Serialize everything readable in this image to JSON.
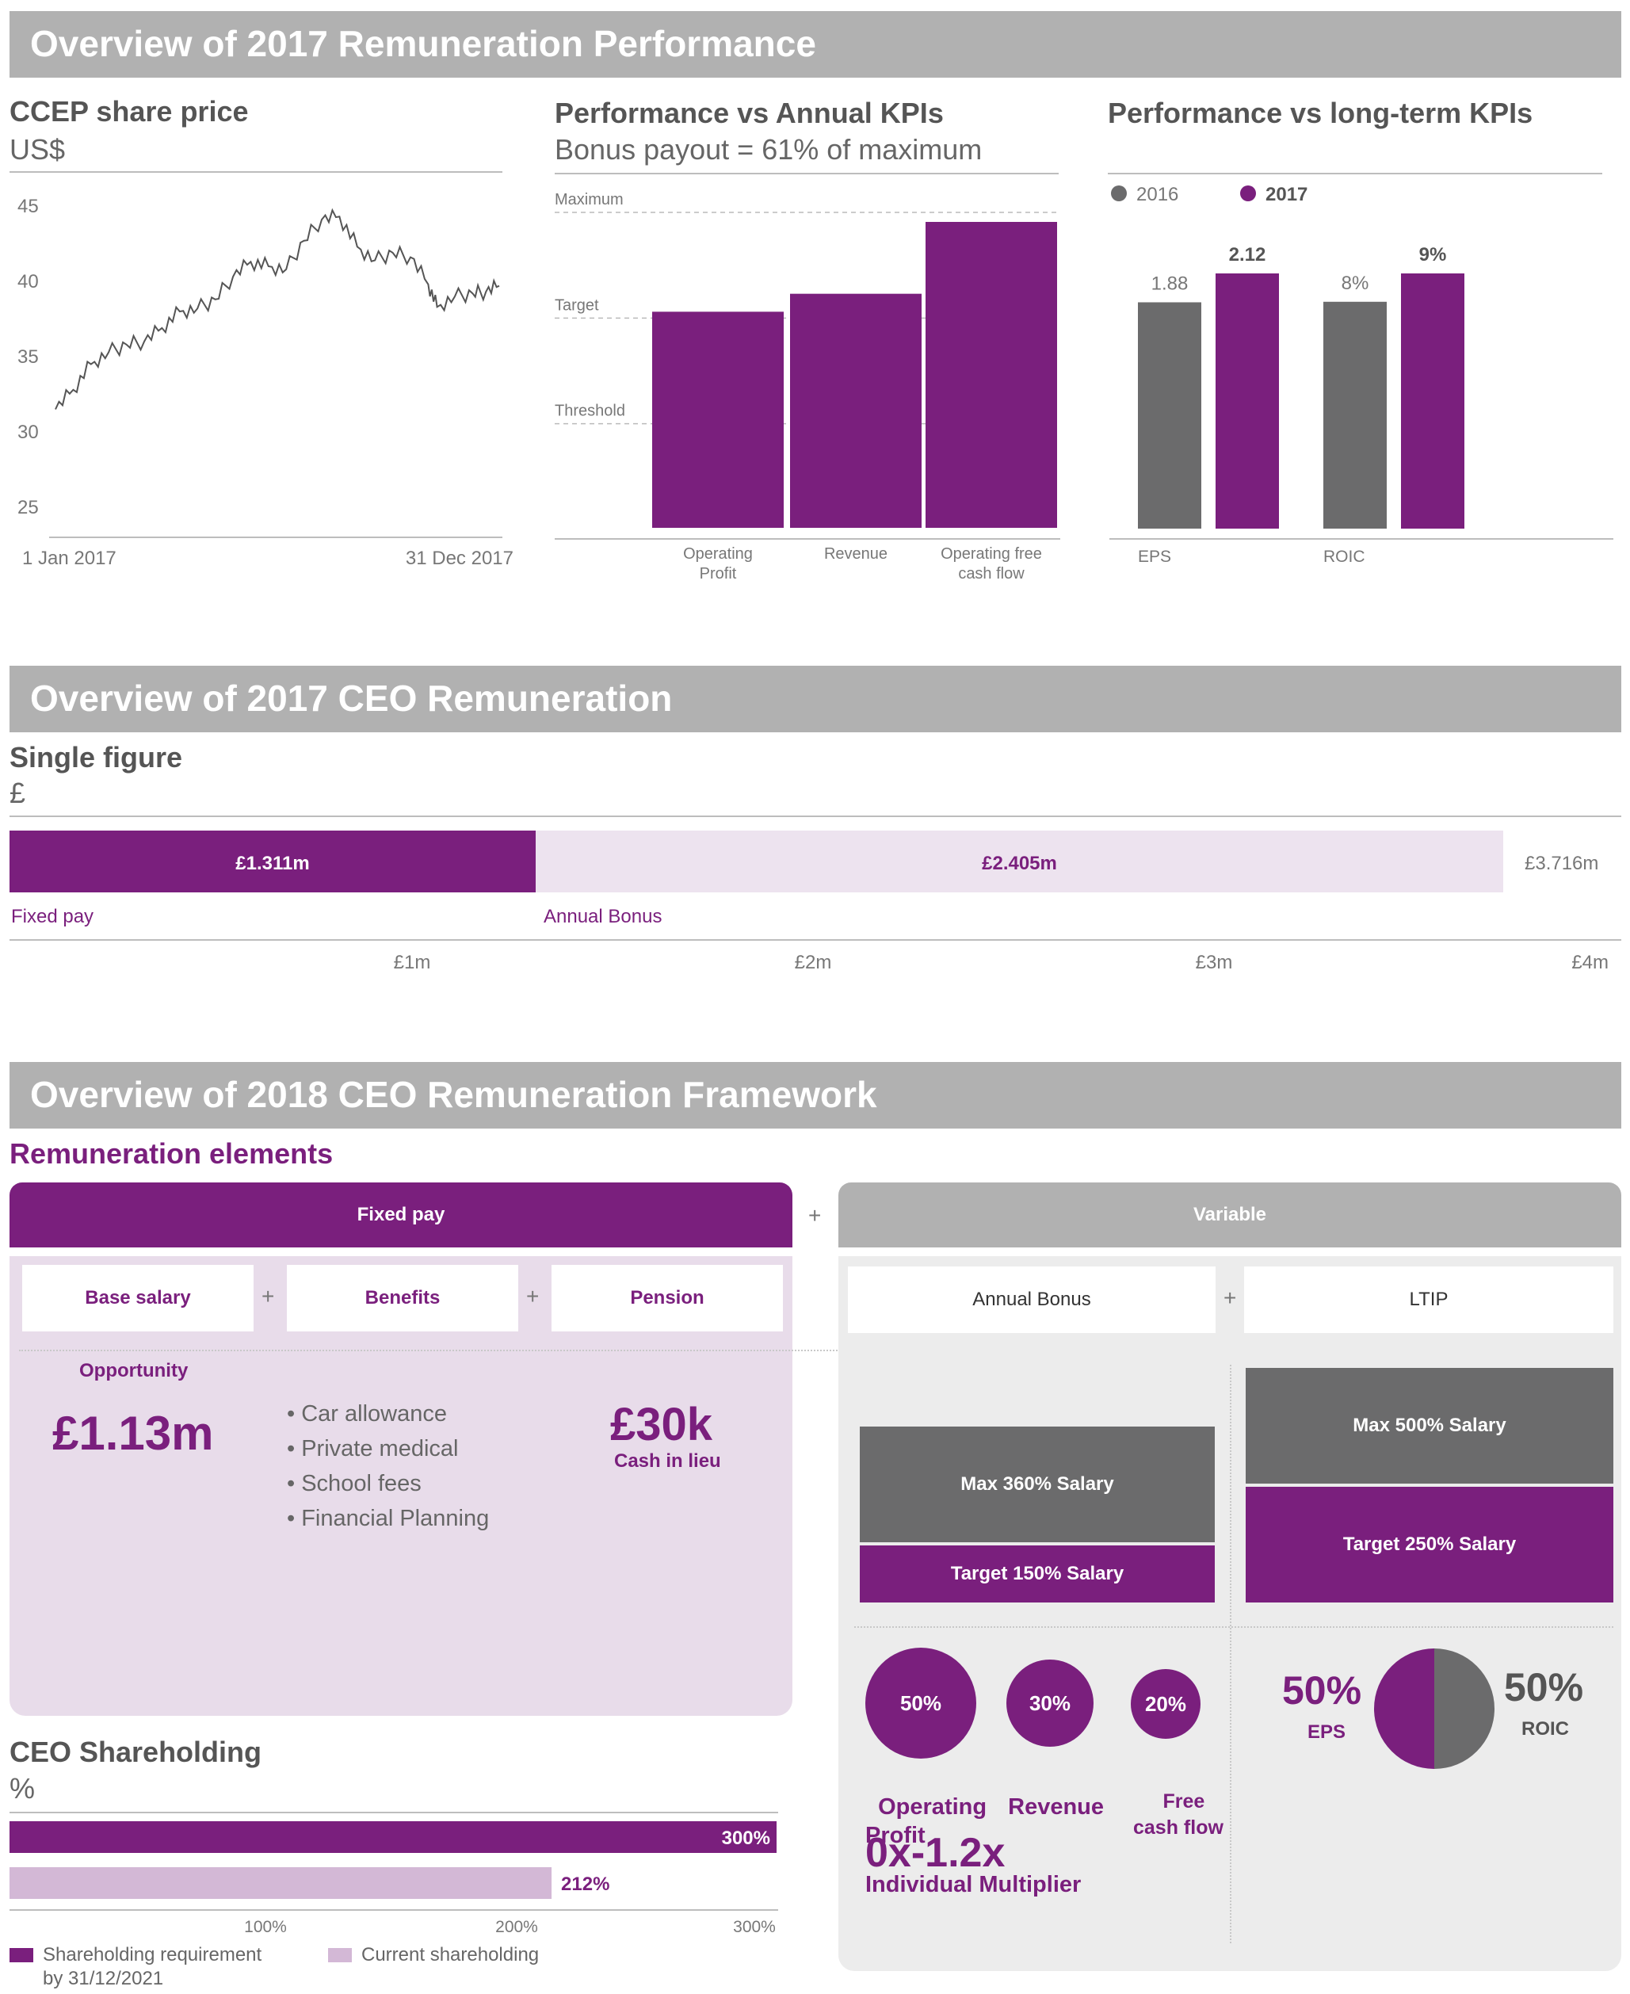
{
  "sections": {
    "perf_title": "Overview of 2017 Remuneration Performance",
    "ceo_title": "Overview of 2017 CEO Remuneration",
    "framework_title": "Overview of 2018 CEO Remuneration Framework"
  },
  "share_price": {
    "title": "CCEP share price",
    "unit": "US$",
    "start_label": "1 Jan 2017",
    "end_label": "31 Dec 2017"
  },
  "annual_kpis": {
    "title": "Performance vs Annual KPIs",
    "subtitle": "Bonus payout = 61% of maximum",
    "level_labels": [
      "Maximum",
      "Target",
      "Threshold"
    ],
    "cat_labels": [
      "Operating\nProfit",
      "Revenue",
      "Operating free\ncash flow"
    ]
  },
  "longterm_kpis": {
    "title": "Performance vs long-term KPIs",
    "legend": [
      "2016",
      "2017"
    ],
    "cats": [
      "EPS",
      "ROIC"
    ],
    "value_labels": [
      "1.88",
      "2.12",
      "8%",
      "9%"
    ]
  },
  "single_figure": {
    "title": "Single figure",
    "unit": "£",
    "fixed_label": "£1.311m",
    "bonus_label": "£2.405m",
    "total_label": "£3.716m",
    "fixed_name": "Fixed pay",
    "bonus_name": "Annual Bonus",
    "ticks": [
      "£1m",
      "£2m",
      "£3m",
      "£4m"
    ]
  },
  "framework": {
    "heading": "Remuneration elements",
    "fixed_header": "Fixed pay",
    "plus": "+",
    "variable_header": "Variable",
    "fixed_items": [
      "Base salary",
      "Benefits",
      "Pension"
    ],
    "variable_items": [
      "Annual Bonus",
      "LTIP"
    ],
    "opportunity_label": "Opportunity",
    "opportunity_value": "£1.13m",
    "benefits": [
      "Car allowance",
      "Private medical",
      "School fees",
      "Financial Planning"
    ],
    "pension_value": "£30k",
    "pension_note": "Cash in lieu",
    "bonus_max": "Max 360% Salary",
    "bonus_target": "Target 150% Salary",
    "ltip_max": "Max 500% Salary",
    "ltip_target": "Target 250% Salary",
    "bonus_weights": [
      {
        "pct": "50%",
        "label": "Operating\nProfit"
      },
      {
        "pct": "30%",
        "label": "Revenue"
      },
      {
        "pct": "20%",
        "label": "Free\ncash flow"
      }
    ],
    "multiplier_value": "0x-1.2x",
    "multiplier_label": "Individual Multiplier",
    "ltip_eps_pct": "50%",
    "ltip_eps_label": "EPS",
    "ltip_roic_pct": "50%",
    "ltip_roic_label": "ROIC"
  },
  "shareholding": {
    "title": "CEO Shareholding",
    "unit": "%",
    "requirement_label": "300%",
    "current_label": "212%",
    "ticks": [
      "100%",
      "200%",
      "300%"
    ],
    "legend_requirement": "Shareholding requirement\nby 31/12/2021",
    "legend_current": "Current shareholding"
  },
  "colors": {
    "purple": "#7a1f7d",
    "grey": "#6b6b6c",
    "light_purple": "#e8dcea",
    "mid_purple": "#d3b8d6",
    "banner_grey": "#b1b1b1"
  },
  "chart_data": [
    {
      "type": "line",
      "title": "CCEP share price",
      "ylabel": "US$",
      "xlabel": "",
      "ylim": [
        25,
        45
      ],
      "yticks": [
        45,
        40,
        35,
        30,
        25
      ],
      "x_range": [
        "1 Jan 2017",
        "31 Dec 2017"
      ],
      "x": [
        0,
        0.04,
        0.08,
        0.12,
        0.16,
        0.2,
        0.24,
        0.28,
        0.32,
        0.36,
        0.4,
        0.44,
        0.48,
        0.52,
        0.56,
        0.6,
        0.64,
        0.68,
        0.72,
        0.76,
        0.8,
        0.84,
        0.86,
        0.9,
        0.94,
        0.97,
        1.0
      ],
      "values": [
        31.5,
        32.8,
        34.5,
        35.3,
        35.8,
        36.0,
        36.9,
        38.0,
        38.2,
        38.8,
        40.3,
        41.3,
        41.0,
        40.8,
        42.7,
        44.1,
        44.3,
        42.3,
        41.4,
        41.9,
        41.6,
        39.8,
        38.3,
        39.0,
        39.2,
        39.3,
        39.7
      ]
    },
    {
      "type": "bar",
      "title": "Performance vs Annual KPIs",
      "subtitle": "Bonus payout = 61% of maximum",
      "categories": [
        "Operating Profit",
        "Revenue",
        "Operating free cash flow"
      ],
      "values": [
        1.06,
        1.23,
        1.91
      ],
      "reference_lines": [
        {
          "name": "Maximum",
          "value": 2.0
        },
        {
          "name": "Target",
          "value": 1.0
        },
        {
          "name": "Threshold",
          "value": 0.0
        }
      ],
      "ylim": [
        -1.0,
        2.0
      ]
    },
    {
      "type": "bar",
      "title": "Performance vs long-term KPIs",
      "categories": [
        "EPS",
        "ROIC"
      ],
      "series": [
        {
          "name": "2016",
          "values": [
            1.88,
            8
          ]
        },
        {
          "name": "2017",
          "values": [
            2.12,
            9
          ]
        }
      ]
    },
    {
      "type": "bar",
      "title": "Single figure",
      "orientation": "horizontal-stacked",
      "unit": "£m",
      "categories": [
        "Fixed pay",
        "Annual Bonus"
      ],
      "values": [
        1.311,
        2.405
      ],
      "total": 3.716,
      "xlim": [
        0,
        4
      ]
    },
    {
      "type": "bar",
      "title": "CEO Shareholding",
      "orientation": "horizontal",
      "unit": "%",
      "categories": [
        "Shareholding requirement by 31/12/2021",
        "Current shareholding"
      ],
      "values": [
        300,
        212
      ],
      "xlim": [
        0,
        300
      ]
    },
    {
      "type": "pie",
      "categories": [
        "EPS",
        "ROIC"
      ],
      "values": [
        50,
        50
      ]
    }
  ]
}
